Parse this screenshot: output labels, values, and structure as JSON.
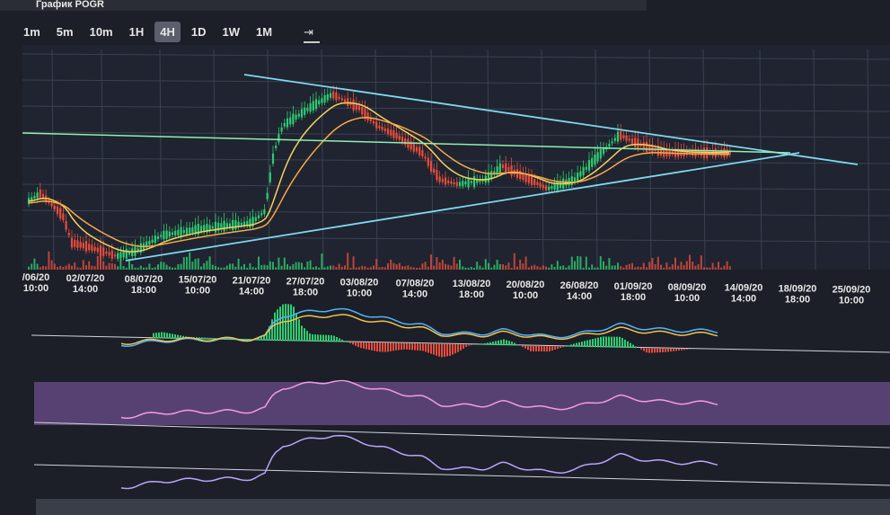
{
  "header": {
    "title": "График POGR"
  },
  "toolbar": {
    "timeframes": [
      "1m",
      "5m",
      "10m",
      "1H",
      "4H",
      "1D",
      "1W",
      "1M"
    ]
  },
  "x_axis": {
    "labels": [
      [
        "/06/20",
        "10:00"
      ],
      [
        "02/07/20",
        "14:00"
      ],
      [
        "08/07/20",
        "18:00"
      ],
      [
        "15/07/20",
        "10:00"
      ],
      [
        "21/07/20",
        "14:00"
      ],
      [
        "27/07/20",
        "18:00"
      ],
      [
        "03/08/20",
        "10:00"
      ],
      [
        "07/08/20",
        "14:00"
      ],
      [
        "13/08/20",
        "18:00"
      ],
      [
        "20/08/20",
        "10:00"
      ],
      [
        "26/08/20",
        "14:00"
      ],
      [
        "01/09/20",
        "18:00"
      ],
      [
        "08/09/20",
        "10:00"
      ],
      [
        "14/09/20",
        "14:00"
      ],
      [
        "18/09/20",
        "18:00"
      ],
      [
        "25/09/20",
        "10:00"
      ]
    ]
  }
}
